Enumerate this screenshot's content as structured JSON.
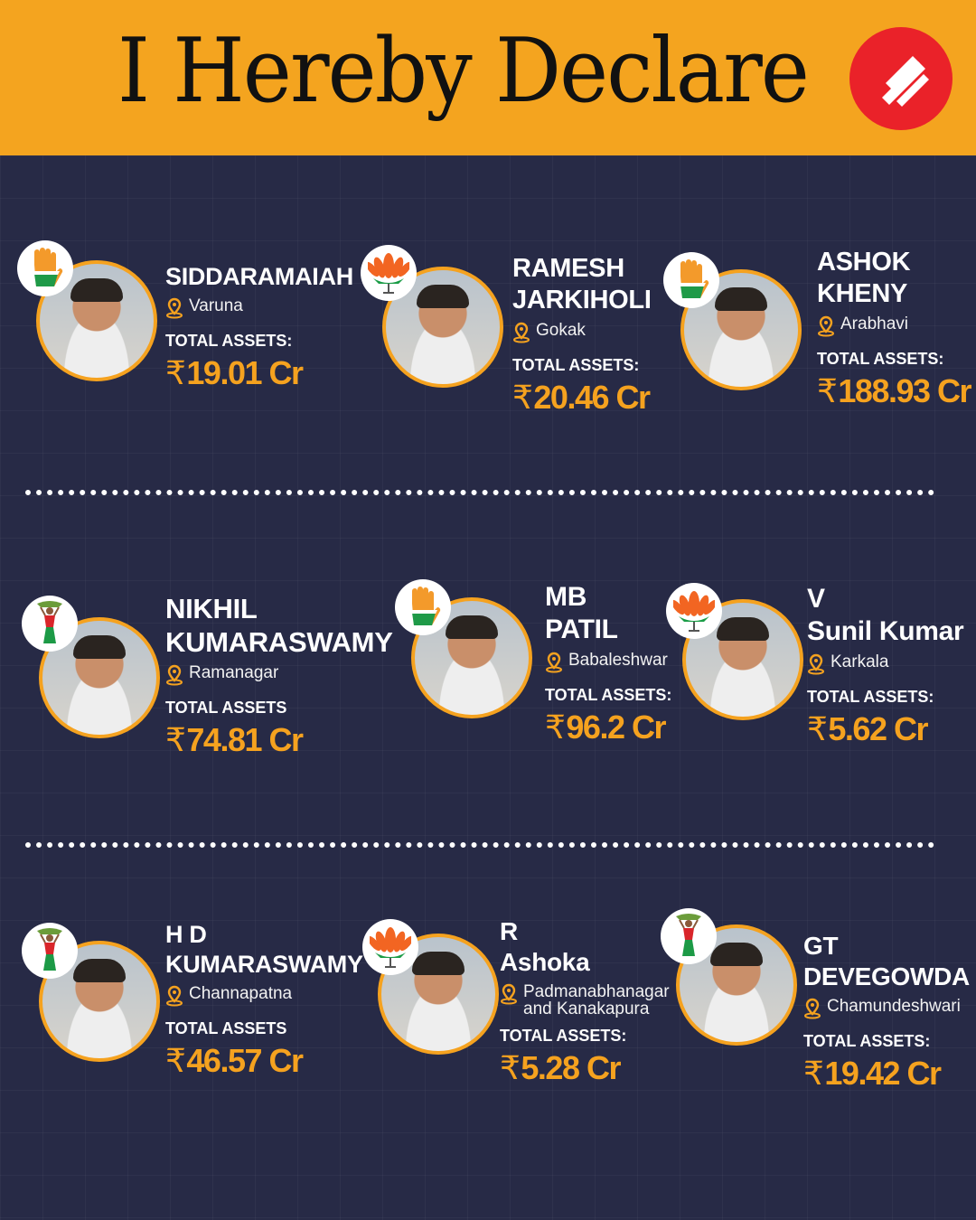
{
  "header": {
    "title": "I Hereby Declare",
    "brand_color": "#f4a41f",
    "logo": "indian-express-logo",
    "logo_color": "#ea2229"
  },
  "accent_color": "#f5a21f",
  "currency_symbol": "₹",
  "candidates": [
    {
      "name": "SIDDARAMAIAH",
      "party_symbol": "congress-hand",
      "constituency": "Varuna",
      "assets_label": "TOTAL ASSETS:",
      "assets": "19.01 Cr"
    },
    {
      "name": "RAMESH\nJARKIHOLI",
      "party_symbol": "bjp-lotus",
      "constituency": "Gokak",
      "assets_label": "TOTAL ASSETS:",
      "assets": "20.46 Cr"
    },
    {
      "name": "ASHOK\nKHENY",
      "party_symbol": "congress-hand",
      "constituency": "Arabhavi",
      "assets_label": "TOTAL ASSETS:",
      "assets": "188.93 Cr"
    },
    {
      "name": "NIKHIL\nKUMARASWAMY",
      "party_symbol": "jds-woman",
      "constituency": "Ramanagar",
      "assets_label": "TOTAL ASSETS",
      "assets": "74.81 Cr"
    },
    {
      "name": "MB\nPATIL",
      "party_symbol": "congress-hand",
      "constituency": "Babaleshwar",
      "assets_label": "TOTAL ASSETS:",
      "assets": "96.2 Cr"
    },
    {
      "name": "V\nSunil Kumar",
      "party_symbol": "bjp-lotus",
      "constituency": "Karkala",
      "assets_label": "TOTAL ASSETS:",
      "assets": "5.62 Cr"
    },
    {
      "name": "H D\nKUMARASWAMY",
      "party_symbol": "jds-woman",
      "constituency": "Channapatna",
      "assets_label": "TOTAL ASSETS",
      "assets": "46.57 Cr"
    },
    {
      "name": "R\nAshoka",
      "party_symbol": "bjp-lotus",
      "constituency": "Padmanabhanagar\nand Kanakapura",
      "assets_label": "TOTAL ASSETS:",
      "assets": "5.28 Cr"
    },
    {
      "name": "GT\nDEVEGOWDA",
      "party_symbol": "jds-woman",
      "constituency": "Chamundeshwari",
      "assets_label": "TOTAL ASSETS:",
      "assets": "19.42 Cr"
    }
  ]
}
